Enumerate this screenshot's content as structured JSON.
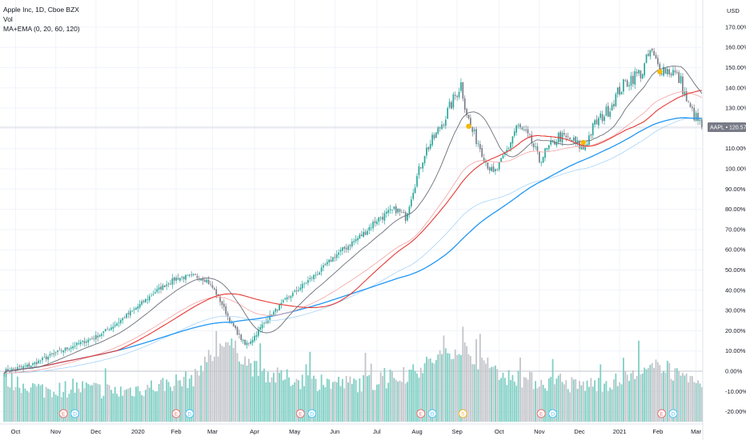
{
  "legend": {
    "title": "Apple Inc, 1D, Cboe BZX",
    "vol": "Vol",
    "indicator": "MA+EMA (0, 20, 60, 120)"
  },
  "colors": {
    "up": "#26a69a",
    "down": "#787b86",
    "vol_up": "#7fcfc4",
    "vol_down": "#c3c5cb",
    "ma_dark": "#6b6e78",
    "ma_red": "#e53935",
    "ma_red_light": "#f4a3a3",
    "ma_blue": "#2196f3",
    "ma_blue_light": "#a9d4f7",
    "marker_yellow": "#f5b800",
    "tag_bg": "#787b86"
  },
  "chart_data": {
    "type": "candlestick",
    "symbol": "AAPL",
    "last_label": "120.57%",
    "currency": "USD",
    "ylim": [
      -25,
      175
    ],
    "y_ticks": [
      -20,
      -10,
      0,
      10,
      20,
      30,
      40,
      50,
      60,
      70,
      80,
      90,
      100,
      110,
      120,
      130,
      140,
      150,
      160,
      170
    ],
    "y_tick_labels": [
      "-20.00%",
      "-10.00%",
      "0.00%",
      "10.00%",
      "20.00%",
      "30.00%",
      "40.00%",
      "50.00%",
      "60.00%",
      "70.00%",
      "80.00%",
      "90.00%",
      "100.00%",
      "110.00%",
      "120.00%",
      "130.00%",
      "140.00%",
      "150.00%",
      "160.00%",
      "170.00%"
    ],
    "x_labels": [
      "Oct",
      "Nov",
      "Dec",
      "2020",
      "Feb",
      "Mar",
      "Apr",
      "May",
      "Jun",
      "Jul",
      "Aug",
      "Sep",
      "Oct",
      "Nov",
      "Dec",
      "2021",
      "Feb",
      "Mar"
    ],
    "x_label_bars": [
      6,
      27,
      48,
      70,
      90,
      109,
      131,
      152,
      173,
      195,
      216,
      237,
      259,
      280,
      301,
      322,
      342,
      362
    ],
    "num_bars": 366,
    "events": [
      {
        "bar": 31,
        "label": "E",
        "kind": "earnings"
      },
      {
        "bar": 37,
        "label": "D",
        "kind": "dividend"
      },
      {
        "bar": 90,
        "label": "E",
        "kind": "earnings"
      },
      {
        "bar": 97,
        "label": "D",
        "kind": "dividend"
      },
      {
        "bar": 155,
        "label": "E",
        "kind": "earnings"
      },
      {
        "bar": 161,
        "label": "D",
        "kind": "dividend"
      },
      {
        "bar": 218,
        "label": "E",
        "kind": "earnings"
      },
      {
        "bar": 224,
        "label": "D",
        "kind": "dividend"
      },
      {
        "bar": 240,
        "label": "S",
        "kind": "split"
      },
      {
        "bar": 281,
        "label": "E",
        "kind": "earnings"
      },
      {
        "bar": 287,
        "label": "D",
        "kind": "dividend"
      },
      {
        "bar": 344,
        "label": "E",
        "kind": "earnings"
      },
      {
        "bar": 350,
        "label": "D",
        "kind": "dividend"
      }
    ],
    "crosses": [
      {
        "bar": 243,
        "value": 121
      },
      {
        "bar": 303,
        "value": 113
      },
      {
        "bar": 343,
        "value": 148
      }
    ],
    "price_path": [
      [
        0,
        0
      ],
      [
        14,
        3
      ],
      [
        27,
        9
      ],
      [
        40,
        14
      ],
      [
        48,
        17
      ],
      [
        58,
        23
      ],
      [
        70,
        32
      ],
      [
        80,
        40
      ],
      [
        90,
        46
      ],
      [
        100,
        47
      ],
      [
        106,
        45
      ],
      [
        110,
        40
      ],
      [
        114,
        33
      ],
      [
        118,
        25
      ],
      [
        122,
        19
      ],
      [
        126,
        13
      ],
      [
        130,
        16
      ],
      [
        136,
        24
      ],
      [
        142,
        30
      ],
      [
        148,
        36
      ],
      [
        152,
        39
      ],
      [
        158,
        44
      ],
      [
        166,
        50
      ],
      [
        173,
        57
      ],
      [
        180,
        62
      ],
      [
        188,
        68
      ],
      [
        195,
        75
      ],
      [
        205,
        80
      ],
      [
        210,
        76
      ],
      [
        214,
        90
      ],
      [
        220,
        108
      ],
      [
        226,
        117
      ],
      [
        231,
        126
      ],
      [
        235,
        134
      ],
      [
        239,
        142
      ],
      [
        241,
        132
      ],
      [
        244,
        120
      ],
      [
        248,
        113
      ],
      [
        252,
        104
      ],
      [
        256,
        97
      ],
      [
        260,
        103
      ],
      [
        264,
        111
      ],
      [
        268,
        121
      ],
      [
        272,
        118
      ],
      [
        276,
        113
      ],
      [
        280,
        104
      ],
      [
        283,
        108
      ],
      [
        290,
        116
      ],
      [
        297,
        114
      ],
      [
        303,
        110
      ],
      [
        309,
        122
      ],
      [
        316,
        129
      ],
      [
        322,
        139
      ],
      [
        328,
        145
      ],
      [
        334,
        148
      ],
      [
        338,
        158
      ],
      [
        342,
        151
      ],
      [
        346,
        149
      ],
      [
        350,
        148
      ],
      [
        354,
        143
      ],
      [
        358,
        131
      ],
      [
        362,
        125
      ],
      [
        365,
        121
      ]
    ],
    "volume_path": [
      [
        0,
        -6
      ],
      [
        20,
        -11
      ],
      [
        40,
        -10
      ],
      [
        60,
        -12
      ],
      [
        80,
        -9
      ],
      [
        100,
        -5
      ],
      [
        105,
        4
      ],
      [
        110,
        6
      ],
      [
        115,
        14
      ],
      [
        120,
        10
      ],
      [
        130,
        0
      ],
      [
        140,
        -4
      ],
      [
        160,
        -7
      ],
      [
        180,
        -8
      ],
      [
        200,
        -7
      ],
      [
        215,
        -2
      ],
      [
        225,
        4
      ],
      [
        232,
        8
      ],
      [
        240,
        10
      ],
      [
        250,
        2
      ],
      [
        260,
        -4
      ],
      [
        280,
        -7
      ],
      [
        300,
        -9
      ],
      [
        320,
        -7
      ],
      [
        335,
        -3
      ],
      [
        345,
        2
      ],
      [
        355,
        -7
      ],
      [
        365,
        -8
      ]
    ],
    "volume_band": [
      -25,
      22
    ],
    "ma_periods": {
      "dark": 20,
      "red": 60,
      "blue": 120
    }
  }
}
